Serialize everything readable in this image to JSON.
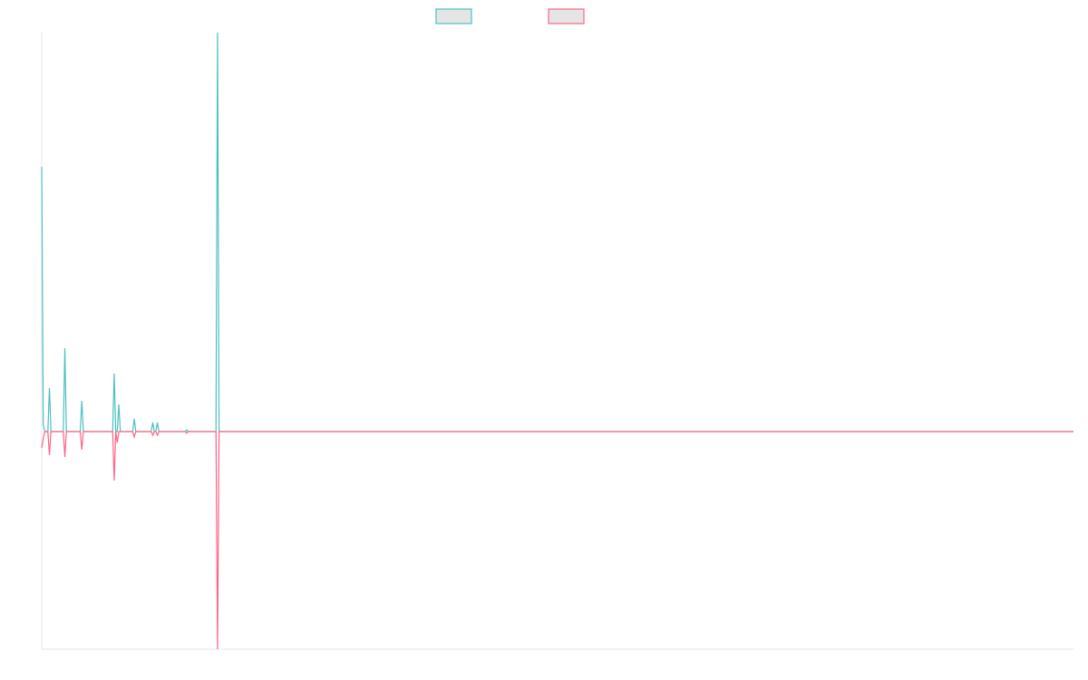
{
  "chart_data": {
    "type": "line",
    "title": "",
    "xlabel": "",
    "ylabel": "",
    "point_count": 670,
    "xlim": [
      0,
      669
    ],
    "ylim": [
      -60,
      110
    ],
    "grid": false,
    "legend_placement": "top-center",
    "series": [
      {
        "name": "",
        "color": "#4bc0c0",
        "legend_fill": "#e5e5e5",
        "nonzero_points": [
          [
            0,
            73
          ],
          [
            1,
            2
          ],
          [
            5,
            12
          ],
          [
            15,
            23
          ],
          [
            26,
            8.5
          ],
          [
            47,
            16
          ],
          [
            50,
            7.5
          ],
          [
            60,
            3.5
          ],
          [
            72,
            2.5
          ],
          [
            75,
            2.5
          ],
          [
            94,
            0.5
          ],
          [
            114,
            110
          ]
        ]
      },
      {
        "name": "",
        "color": "#ff6384",
        "legend_fill": "#e5e5e5",
        "nonzero_points": [
          [
            0,
            -4.5
          ],
          [
            1,
            -2
          ],
          [
            5,
            -6.5
          ],
          [
            15,
            -7
          ],
          [
            26,
            -5
          ],
          [
            47,
            -13.5
          ],
          [
            49,
            -3
          ],
          [
            60,
            -1.5
          ],
          [
            72,
            -1
          ],
          [
            75,
            -1
          ],
          [
            94,
            -0.5
          ],
          [
            114,
            -60
          ]
        ]
      }
    ]
  }
}
